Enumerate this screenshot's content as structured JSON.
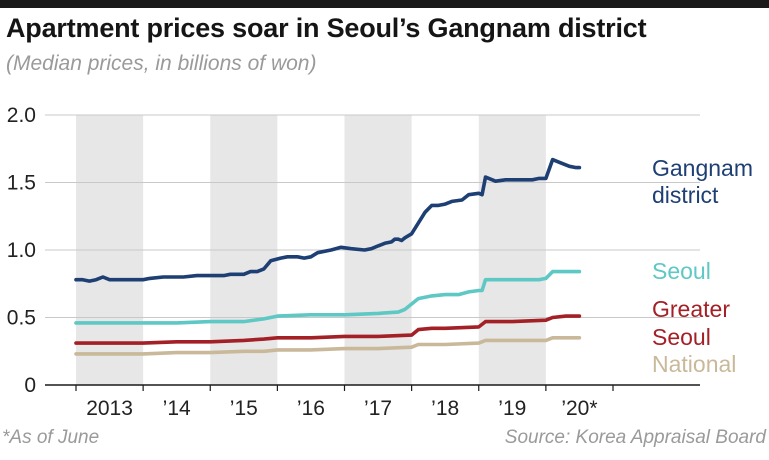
{
  "title": "Apartment prices soar in Seoul’s Gangnam district",
  "subtitle": "(Median prices, in billions of won)",
  "footnote": "*As of June",
  "source": "Source: Korea Appraisal Board",
  "chart_data": {
    "type": "line",
    "title": "Apartment prices soar in Seoul’s Gangnam district",
    "subtitle": "(Median prices, in billions of won)",
    "ylabel": "",
    "xlabel": "",
    "ylim": [
      0,
      2.0
    ],
    "yticks": [
      0,
      0.5,
      1.0,
      1.5,
      2.0
    ],
    "ytick_labels": [
      "0",
      "0.5",
      "1.0",
      "1.5",
      "2.0"
    ],
    "x_start": 2012.5,
    "x_end": 2020.5,
    "year_labels": [
      {
        "label": "2013",
        "x": 2013
      },
      {
        "label": "’14",
        "x": 2014
      },
      {
        "label": "’15",
        "x": 2015
      },
      {
        "label": "’16",
        "x": 2016
      },
      {
        "label": "’17",
        "x": 2017
      },
      {
        "label": "’18",
        "x": 2018
      },
      {
        "label": "’19",
        "x": 2019
      },
      {
        "label": "’20*",
        "x": 2020
      }
    ],
    "shaded_years": [
      2013,
      2015,
      2017,
      2019
    ],
    "grid": true,
    "series": [
      {
        "name": "Gangnam district",
        "label_lines": [
          "Gangnam",
          "district"
        ],
        "color": "#1d3f73",
        "x": [
          2012.5,
          2012.6,
          2012.7,
          2012.8,
          2012.9,
          2013.0,
          2013.25,
          2013.5,
          2013.6,
          2013.8,
          2014.0,
          2014.1,
          2014.3,
          2014.5,
          2014.7,
          2014.8,
          2015.0,
          2015.1,
          2015.2,
          2015.3,
          2015.4,
          2015.55,
          2015.65,
          2015.8,
          2015.9,
          2016.0,
          2016.1,
          2016.3,
          2016.45,
          2016.6,
          2016.8,
          2016.9,
          2017.0,
          2017.1,
          2017.2,
          2017.25,
          2017.3,
          2017.35,
          2017.4,
          2017.5,
          2017.7,
          2017.8,
          2017.9,
          2018.0,
          2018.1,
          2018.25,
          2018.35,
          2018.5,
          2018.55,
          2018.6,
          2018.75,
          2018.9,
          2019.0,
          2019.3,
          2019.4,
          2019.5,
          2019.6,
          2019.7,
          2019.85,
          2019.95,
          2020.0
        ],
        "values": [
          0.78,
          0.78,
          0.77,
          0.78,
          0.8,
          0.78,
          0.78,
          0.78,
          0.79,
          0.8,
          0.8,
          0.8,
          0.81,
          0.81,
          0.81,
          0.82,
          0.82,
          0.84,
          0.84,
          0.86,
          0.92,
          0.94,
          0.95,
          0.95,
          0.94,
          0.95,
          0.98,
          1.0,
          1.02,
          1.01,
          1.0,
          1.01,
          1.03,
          1.05,
          1.06,
          1.08,
          1.08,
          1.07,
          1.09,
          1.12,
          1.28,
          1.33,
          1.33,
          1.34,
          1.36,
          1.37,
          1.41,
          1.42,
          1.41,
          1.54,
          1.51,
          1.52,
          1.52,
          1.52,
          1.53,
          1.53,
          1.67,
          1.65,
          1.62,
          1.61,
          1.61
        ]
      },
      {
        "name": "Seoul",
        "label_lines": [
          "Seoul"
        ],
        "color": "#5ec8c4",
        "x": [
          2012.5,
          2013.0,
          2013.5,
          2014.0,
          2014.5,
          2015.0,
          2015.3,
          2015.5,
          2016.0,
          2016.5,
          2017.0,
          2017.3,
          2017.4,
          2017.6,
          2017.8,
          2018.0,
          2018.2,
          2018.35,
          2018.5,
          2018.55,
          2018.6,
          2019.0,
          2019.4,
          2019.5,
          2019.6,
          2019.8,
          2020.0
        ],
        "values": [
          0.46,
          0.46,
          0.46,
          0.46,
          0.47,
          0.47,
          0.49,
          0.51,
          0.52,
          0.52,
          0.53,
          0.54,
          0.56,
          0.64,
          0.66,
          0.67,
          0.67,
          0.69,
          0.7,
          0.7,
          0.78,
          0.78,
          0.78,
          0.79,
          0.84,
          0.84,
          0.84
        ]
      },
      {
        "name": "Greater Seoul",
        "label_lines": [
          "Greater",
          "Seoul"
        ],
        "color": "#a32026",
        "x": [
          2012.5,
          2013.0,
          2013.5,
          2014.0,
          2014.5,
          2015.0,
          2015.3,
          2015.5,
          2016.0,
          2016.5,
          2017.0,
          2017.5,
          2017.6,
          2017.8,
          2018.0,
          2018.5,
          2018.6,
          2019.0,
          2019.5,
          2019.6,
          2019.8,
          2020.0
        ],
        "values": [
          0.31,
          0.31,
          0.31,
          0.32,
          0.32,
          0.33,
          0.34,
          0.35,
          0.35,
          0.36,
          0.36,
          0.37,
          0.41,
          0.42,
          0.42,
          0.43,
          0.47,
          0.47,
          0.48,
          0.5,
          0.51,
          0.51
        ]
      },
      {
        "name": "National",
        "label_lines": [
          "National"
        ],
        "color": "#c9b99a",
        "x": [
          2012.5,
          2013.0,
          2013.5,
          2014.0,
          2014.5,
          2015.0,
          2015.3,
          2015.5,
          2016.0,
          2016.5,
          2017.0,
          2017.5,
          2017.6,
          2018.0,
          2018.5,
          2018.6,
          2019.0,
          2019.5,
          2019.6,
          2020.0
        ],
        "values": [
          0.23,
          0.23,
          0.23,
          0.24,
          0.24,
          0.25,
          0.25,
          0.26,
          0.26,
          0.27,
          0.27,
          0.28,
          0.3,
          0.3,
          0.31,
          0.33,
          0.33,
          0.33,
          0.35,
          0.35
        ]
      }
    ]
  }
}
